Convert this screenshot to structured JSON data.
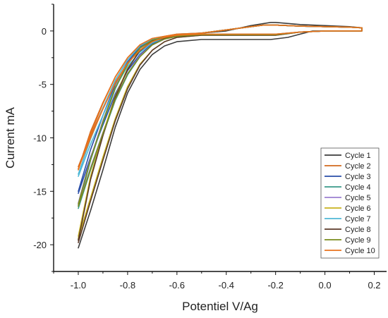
{
  "chart_data": {
    "type": "line",
    "xlabel": "Potentiel V/Ag",
    "ylabel": "Current mA",
    "xlim": [
      -1.1,
      0.25
    ],
    "ylim": [
      -22.5,
      2.5
    ],
    "x_ticks": [
      -1.0,
      -0.8,
      -0.6,
      -0.4,
      -0.2,
      0.0,
      0.2
    ],
    "x_tick_labels": [
      "-1.0",
      "-0.8",
      "-0.6",
      "-0.4",
      "-0.2",
      "0.0",
      "0.2"
    ],
    "y_ticks": [
      0,
      -5,
      -10,
      -15,
      -20
    ],
    "y_tick_labels": [
      "0",
      "-5",
      "-10",
      "-15",
      "-20"
    ],
    "grid": false,
    "legend_position": "bottom-right",
    "series": [
      {
        "name": "Cycle 1",
        "color": "#3c3c3c",
        "forward": {
          "x": [
            -1.0,
            -0.95,
            -0.9,
            -0.85,
            -0.8,
            -0.75,
            -0.7,
            -0.65,
            -0.6,
            -0.5,
            -0.4,
            -0.3,
            -0.22,
            -0.15,
            -0.1,
            -0.05,
            0.0,
            0.05,
            0.1,
            0.15
          ],
          "y": [
            -20.3,
            -16.8,
            -13.0,
            -9.0,
            -5.8,
            -3.6,
            -2.2,
            -1.4,
            -1.0,
            -0.8,
            -0.8,
            -0.8,
            -0.8,
            -0.6,
            -0.3,
            0.0,
            0.0,
            0.0,
            0.0,
            0.0
          ]
        },
        "reverse": {
          "x": [
            0.15,
            0.1,
            0.0,
            -0.1,
            -0.2,
            -0.22,
            -0.3,
            -0.4,
            -0.5,
            -0.6,
            -0.7,
            -0.75,
            -0.8,
            -0.85,
            -0.9,
            -0.95,
            -1.0
          ],
          "y": [
            0.3,
            0.4,
            0.5,
            0.6,
            0.8,
            0.8,
            0.5,
            0.0,
            -0.2,
            -0.4,
            -1.0,
            -1.9,
            -3.5,
            -6.2,
            -9.6,
            -13.8,
            -19.5
          ]
        }
      },
      {
        "name": "Cycle 2",
        "color": "#d2691e",
        "forward": {
          "x": [
            -1.0,
            -0.95,
            -0.9,
            -0.85,
            -0.8,
            -0.75,
            -0.7,
            -0.65,
            -0.6,
            -0.5,
            -0.4,
            -0.3,
            -0.25,
            -0.2,
            -0.1,
            0.0,
            0.1,
            0.15
          ],
          "y": [
            -12.7,
            -9.8,
            -7.2,
            -4.8,
            -3.0,
            -1.8,
            -1.0,
            -0.6,
            -0.4,
            -0.3,
            -0.3,
            -0.3,
            -0.3,
            -0.3,
            -0.1,
            0.0,
            0.0,
            0.0
          ]
        },
        "reverse": {
          "x": [
            0.15,
            0.1,
            0.0,
            -0.1,
            -0.2,
            -0.25,
            -0.3,
            -0.4,
            -0.5,
            -0.6,
            -0.7,
            -0.75,
            -0.8,
            -0.85,
            -0.9,
            -0.95,
            -1.0
          ],
          "y": [
            0.3,
            0.35,
            0.4,
            0.45,
            0.55,
            0.55,
            0.4,
            0.1,
            -0.2,
            -0.3,
            -0.7,
            -1.3,
            -2.5,
            -4.3,
            -6.7,
            -9.4,
            -12.9
          ]
        }
      },
      {
        "name": "Cycle 3",
        "color": "#2a4ea8",
        "forward": {
          "x": [
            -1.0,
            -0.95,
            -0.9,
            -0.85,
            -0.8,
            -0.75,
            -0.7,
            -0.65,
            -0.6,
            -0.5,
            -0.4,
            -0.3,
            -0.25,
            -0.2,
            -0.1,
            0.0,
            0.1,
            0.15
          ],
          "y": [
            -15.2,
            -11.8,
            -8.8,
            -5.9,
            -3.7,
            -2.2,
            -1.2,
            -0.7,
            -0.45,
            -0.35,
            -0.35,
            -0.35,
            -0.35,
            -0.35,
            -0.1,
            0.0,
            0.0,
            0.0
          ]
        },
        "reverse": {
          "x": [
            0.15,
            0.1,
            0.0,
            -0.1,
            -0.2,
            -0.25,
            -0.3,
            -0.4,
            -0.5,
            -0.6,
            -0.7,
            -0.75,
            -0.8,
            -0.85,
            -0.9,
            -0.95,
            -1.0
          ],
          "y": [
            0.3,
            0.35,
            0.4,
            0.45,
            0.55,
            0.55,
            0.4,
            0.1,
            -0.2,
            -0.35,
            -0.8,
            -1.5,
            -2.9,
            -5.0,
            -7.9,
            -11.1,
            -15.0
          ]
        }
      },
      {
        "name": "Cycle 4",
        "color": "#3a9a8a",
        "forward": {
          "x": [
            -1.0,
            -0.95,
            -0.9,
            -0.85,
            -0.8,
            -0.75,
            -0.7,
            -0.65,
            -0.6,
            -0.5,
            -0.4,
            -0.3,
            -0.25,
            -0.2,
            -0.1,
            0.0,
            0.1,
            0.15
          ],
          "y": [
            -16.6,
            -13.0,
            -9.7,
            -6.5,
            -4.1,
            -2.4,
            -1.3,
            -0.75,
            -0.5,
            -0.35,
            -0.35,
            -0.35,
            -0.35,
            -0.35,
            -0.1,
            0.0,
            0.0,
            0.0
          ]
        },
        "reverse": {
          "x": [
            0.15,
            0.1,
            0.0,
            -0.1,
            -0.2,
            -0.25,
            -0.3,
            -0.4,
            -0.5,
            -0.6,
            -0.7,
            -0.75,
            -0.8,
            -0.85,
            -0.9,
            -0.95,
            -1.0
          ],
          "y": [
            0.3,
            0.35,
            0.4,
            0.45,
            0.55,
            0.55,
            0.4,
            0.1,
            -0.2,
            -0.35,
            -0.85,
            -1.6,
            -3.1,
            -5.4,
            -8.6,
            -12.1,
            -16.4
          ]
        }
      },
      {
        "name": "Cycle 5",
        "color": "#9b7fd1",
        "forward": {
          "x": [
            -1.0,
            -0.95,
            -0.9,
            -0.85,
            -0.8,
            -0.75,
            -0.7,
            -0.65,
            -0.6,
            -0.5,
            -0.4,
            -0.3,
            -0.25,
            -0.2,
            -0.1,
            0.0,
            0.1,
            0.15
          ],
          "y": [
            -16.3,
            -12.8,
            -9.5,
            -6.4,
            -4.0,
            -2.3,
            -1.3,
            -0.75,
            -0.5,
            -0.35,
            -0.35,
            -0.35,
            -0.35,
            -0.35,
            -0.1,
            0.0,
            0.0,
            0.0
          ]
        },
        "reverse": {
          "x": [
            0.15,
            0.1,
            0.0,
            -0.1,
            -0.2,
            -0.25,
            -0.3,
            -0.4,
            -0.5,
            -0.6,
            -0.7,
            -0.75,
            -0.8,
            -0.85,
            -0.9,
            -0.95,
            -1.0
          ],
          "y": [
            0.3,
            0.35,
            0.4,
            0.45,
            0.55,
            0.55,
            0.4,
            0.1,
            -0.2,
            -0.35,
            -0.85,
            -1.6,
            -3.1,
            -5.3,
            -8.4,
            -11.9,
            -16.1
          ]
        }
      },
      {
        "name": "Cycle 6",
        "color": "#c8b21e",
        "forward": {
          "x": [
            -1.0,
            -0.95,
            -0.9,
            -0.85,
            -0.8,
            -0.75,
            -0.7,
            -0.65,
            -0.6,
            -0.5,
            -0.4,
            -0.3,
            -0.25,
            -0.2,
            -0.1,
            0.0,
            0.1,
            0.15
          ],
          "y": [
            -19.4,
            -15.6,
            -11.8,
            -8.2,
            -5.2,
            -3.1,
            -1.8,
            -1.0,
            -0.6,
            -0.4,
            -0.4,
            -0.4,
            -0.4,
            -0.4,
            -0.1,
            0.0,
            0.0,
            0.0
          ]
        },
        "reverse": {
          "x": [
            0.15,
            0.1,
            0.0,
            -0.1,
            -0.2,
            -0.25,
            -0.3,
            -0.4,
            -0.5,
            -0.6,
            -0.7,
            -0.75,
            -0.8,
            -0.85,
            -0.9,
            -0.95,
            -1.0
          ],
          "y": [
            0.3,
            0.35,
            0.4,
            0.45,
            0.55,
            0.55,
            0.4,
            0.1,
            -0.2,
            -0.4,
            -0.95,
            -1.8,
            -3.5,
            -6.1,
            -9.6,
            -13.6,
            -19.2
          ]
        }
      },
      {
        "name": "Cycle 7",
        "color": "#4fb8d6",
        "forward": {
          "x": [
            -1.0,
            -0.95,
            -0.9,
            -0.85,
            -0.8,
            -0.75,
            -0.7,
            -0.65,
            -0.6,
            -0.5,
            -0.4,
            -0.3,
            -0.25,
            -0.2,
            -0.1,
            0.0,
            0.1,
            0.15
          ],
          "y": [
            -13.6,
            -10.6,
            -7.9,
            -5.3,
            -3.3,
            -2.0,
            -1.1,
            -0.65,
            -0.45,
            -0.3,
            -0.3,
            -0.3,
            -0.3,
            -0.3,
            -0.1,
            0.0,
            0.0,
            0.0
          ]
        },
        "reverse": {
          "x": [
            0.15,
            0.1,
            0.0,
            -0.1,
            -0.2,
            -0.25,
            -0.3,
            -0.4,
            -0.5,
            -0.6,
            -0.7,
            -0.75,
            -0.8,
            -0.85,
            -0.9,
            -0.95,
            -1.0
          ],
          "y": [
            0.3,
            0.35,
            0.4,
            0.45,
            0.55,
            0.55,
            0.4,
            0.1,
            -0.2,
            -0.3,
            -0.75,
            -1.4,
            -2.7,
            -4.6,
            -7.2,
            -10.1,
            -13.4
          ]
        }
      },
      {
        "name": "Cycle 8",
        "color": "#5b3a2a",
        "forward": {
          "x": [
            -1.0,
            -0.95,
            -0.9,
            -0.85,
            -0.8,
            -0.75,
            -0.7,
            -0.65,
            -0.6,
            -0.5,
            -0.4,
            -0.3,
            -0.25,
            -0.2,
            -0.1,
            0.0,
            0.1,
            0.15
          ],
          "y": [
            -19.8,
            -15.9,
            -12.1,
            -8.4,
            -5.4,
            -3.2,
            -1.8,
            -1.0,
            -0.6,
            -0.4,
            -0.4,
            -0.4,
            -0.4,
            -0.4,
            -0.1,
            0.0,
            0.0,
            0.0
          ]
        },
        "reverse": {
          "x": [
            0.15,
            0.1,
            0.0,
            -0.1,
            -0.2,
            -0.25,
            -0.3,
            -0.4,
            -0.5,
            -0.6,
            -0.7,
            -0.75,
            -0.8,
            -0.85,
            -0.9,
            -0.95,
            -1.0
          ],
          "y": [
            0.3,
            0.35,
            0.4,
            0.45,
            0.55,
            0.55,
            0.4,
            0.1,
            -0.2,
            -0.4,
            -0.95,
            -1.8,
            -3.6,
            -6.2,
            -9.8,
            -13.9,
            -19.6
          ]
        }
      },
      {
        "name": "Cycle 9",
        "color": "#7a8c1e",
        "forward": {
          "x": [
            -1.0,
            -0.95,
            -0.9,
            -0.85,
            -0.8,
            -0.75,
            -0.7,
            -0.65,
            -0.6,
            -0.5,
            -0.4,
            -0.3,
            -0.25,
            -0.2,
            -0.1,
            0.0,
            0.1,
            0.15
          ],
          "y": [
            -16.4,
            -12.9,
            -9.6,
            -6.4,
            -4.0,
            -2.4,
            -1.3,
            -0.75,
            -0.5,
            -0.35,
            -0.35,
            -0.35,
            -0.35,
            -0.35,
            -0.1,
            0.0,
            0.0,
            0.0
          ]
        },
        "reverse": {
          "x": [
            0.15,
            0.1,
            0.0,
            -0.1,
            -0.2,
            -0.25,
            -0.3,
            -0.4,
            -0.5,
            -0.6,
            -0.7,
            -0.75,
            -0.8,
            -0.85,
            -0.9,
            -0.95,
            -1.0
          ],
          "y": [
            0.3,
            0.35,
            0.4,
            0.45,
            0.55,
            0.55,
            0.4,
            0.1,
            -0.2,
            -0.35,
            -0.85,
            -1.6,
            -3.1,
            -5.3,
            -8.5,
            -12.0,
            -16.2
          ]
        }
      },
      {
        "name": "Cycle 10",
        "color": "#e8731e",
        "forward": {
          "x": [
            -1.0,
            -0.95,
            -0.9,
            -0.85,
            -0.8,
            -0.75,
            -0.7,
            -0.65,
            -0.6,
            -0.5,
            -0.4,
            -0.3,
            -0.25,
            -0.2,
            -0.1,
            0.0,
            0.1,
            0.15
          ],
          "y": [
            -12.9,
            -10.0,
            -7.3,
            -4.9,
            -3.0,
            -1.8,
            -1.0,
            -0.6,
            -0.4,
            -0.3,
            -0.3,
            -0.3,
            -0.3,
            -0.3,
            -0.1,
            0.0,
            0.0,
            0.0
          ]
        },
        "reverse": {
          "x": [
            0.15,
            0.1,
            0.0,
            -0.1,
            -0.2,
            -0.25,
            -0.3,
            -0.4,
            -0.5,
            -0.6,
            -0.7,
            -0.75,
            -0.8,
            -0.85,
            -0.9,
            -0.95,
            -1.0
          ],
          "y": [
            0.3,
            0.35,
            0.4,
            0.45,
            0.55,
            0.55,
            0.4,
            0.1,
            -0.2,
            -0.3,
            -0.7,
            -1.3,
            -2.5,
            -4.3,
            -6.8,
            -9.6,
            -13.0
          ]
        }
      }
    ]
  }
}
